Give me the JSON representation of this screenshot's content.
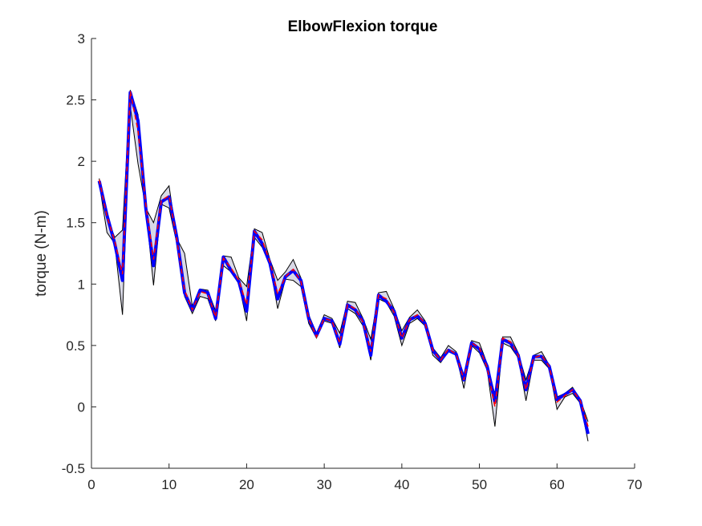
{
  "chart_data": {
    "type": "line",
    "title": "ElbowFlexion torque",
    "xlabel": "",
    "ylabel": "torque (N-m)",
    "xlim": [
      0,
      70
    ],
    "ylim": [
      -0.5,
      3
    ],
    "xticks": [
      "0",
      "10",
      "20",
      "30",
      "40",
      "50",
      "60",
      "70"
    ],
    "yticks": [
      "-0.5",
      "0",
      "0.5",
      "1",
      "1.5",
      "2",
      "2.5",
      "3"
    ],
    "grid": false,
    "legend": "none",
    "colors": {
      "upper": "#000000",
      "lower": "#000000",
      "band_fill": "#d9d9e6",
      "mean": "#ff0000",
      "median": "#0000ff"
    },
    "x": [
      1,
      2,
      3,
      4,
      5,
      6,
      7,
      8,
      9,
      10,
      11,
      12,
      13,
      14,
      15,
      16,
      17,
      18,
      19,
      20,
      21,
      22,
      23,
      24,
      25,
      26,
      27,
      28,
      29,
      30,
      31,
      32,
      33,
      34,
      35,
      36,
      37,
      38,
      39,
      40,
      41,
      42,
      43,
      44,
      45,
      46,
      47,
      48,
      49,
      50,
      51,
      52,
      53,
      54,
      55,
      56,
      57,
      58,
      59,
      60,
      61,
      62,
      63,
      64
    ],
    "series": [
      {
        "role": "upper",
        "values": [
          1.86,
          1.55,
          1.38,
          1.44,
          2.58,
          2.38,
          1.62,
          1.5,
          1.72,
          1.8,
          1.37,
          1.25,
          0.82,
          0.96,
          0.95,
          0.78,
          1.23,
          1.22,
          1.05,
          0.98,
          1.45,
          1.42,
          1.2,
          1.03,
          1.1,
          1.2,
          1.05,
          0.75,
          0.6,
          0.75,
          0.72,
          0.6,
          0.86,
          0.85,
          0.72,
          0.55,
          0.93,
          0.94,
          0.8,
          0.62,
          0.73,
          0.79,
          0.7,
          0.48,
          0.4,
          0.5,
          0.45,
          0.26,
          0.54,
          0.52,
          0.35,
          0.1,
          0.57,
          0.57,
          0.44,
          0.22,
          0.42,
          0.45,
          0.34,
          0.08,
          0.11,
          0.16,
          0.06,
          -0.12
        ]
      },
      {
        "role": "lower",
        "values": [
          1.82,
          1.42,
          1.33,
          0.75,
          2.45,
          1.98,
          1.62,
          0.99,
          1.65,
          1.62,
          1.33,
          0.9,
          0.76,
          0.9,
          0.88,
          0.7,
          1.15,
          1.1,
          1.0,
          0.7,
          1.38,
          1.3,
          1.15,
          0.8,
          1.04,
          1.03,
          0.98,
          0.68,
          0.56,
          0.7,
          0.68,
          0.48,
          0.8,
          0.76,
          0.66,
          0.38,
          0.88,
          0.85,
          0.74,
          0.5,
          0.68,
          0.72,
          0.66,
          0.42,
          0.36,
          0.45,
          0.42,
          0.15,
          0.5,
          0.44,
          0.3,
          -0.16,
          0.52,
          0.49,
          0.4,
          0.05,
          0.38,
          0.38,
          0.31,
          -0.02,
          0.08,
          0.11,
          0.03,
          -0.28
        ]
      },
      {
        "role": "mean",
        "values": [
          1.85,
          1.55,
          1.35,
          1.08,
          2.57,
          2.25,
          1.65,
          1.2,
          1.68,
          1.72,
          1.36,
          0.95,
          0.79,
          0.94,
          0.92,
          0.73,
          1.21,
          1.13,
          1.03,
          0.83,
          1.43,
          1.36,
          1.18,
          0.92,
          1.06,
          1.12,
          1.02,
          0.72,
          0.57,
          0.72,
          0.7,
          0.52,
          0.83,
          0.8,
          0.69,
          0.45,
          0.91,
          0.88,
          0.77,
          0.56,
          0.71,
          0.75,
          0.68,
          0.46,
          0.38,
          0.47,
          0.43,
          0.22,
          0.52,
          0.48,
          0.32,
          0.0,
          0.56,
          0.53,
          0.42,
          0.14,
          0.4,
          0.42,
          0.33,
          0.04,
          0.09,
          0.14,
          0.05,
          -0.16
        ]
      },
      {
        "role": "median",
        "values": [
          1.84,
          1.56,
          1.33,
          1.03,
          2.56,
          2.33,
          1.62,
          1.15,
          1.67,
          1.71,
          1.38,
          0.93,
          0.79,
          0.95,
          0.93,
          0.72,
          1.22,
          1.11,
          1.02,
          0.78,
          1.43,
          1.33,
          1.17,
          0.88,
          1.06,
          1.11,
          1.03,
          0.72,
          0.58,
          0.72,
          0.7,
          0.51,
          0.83,
          0.79,
          0.7,
          0.42,
          0.91,
          0.86,
          0.78,
          0.56,
          0.71,
          0.74,
          0.68,
          0.46,
          0.38,
          0.46,
          0.43,
          0.22,
          0.52,
          0.47,
          0.33,
          0.04,
          0.55,
          0.52,
          0.42,
          0.14,
          0.41,
          0.41,
          0.33,
          0.06,
          0.1,
          0.14,
          0.05,
          -0.22
        ]
      }
    ]
  }
}
